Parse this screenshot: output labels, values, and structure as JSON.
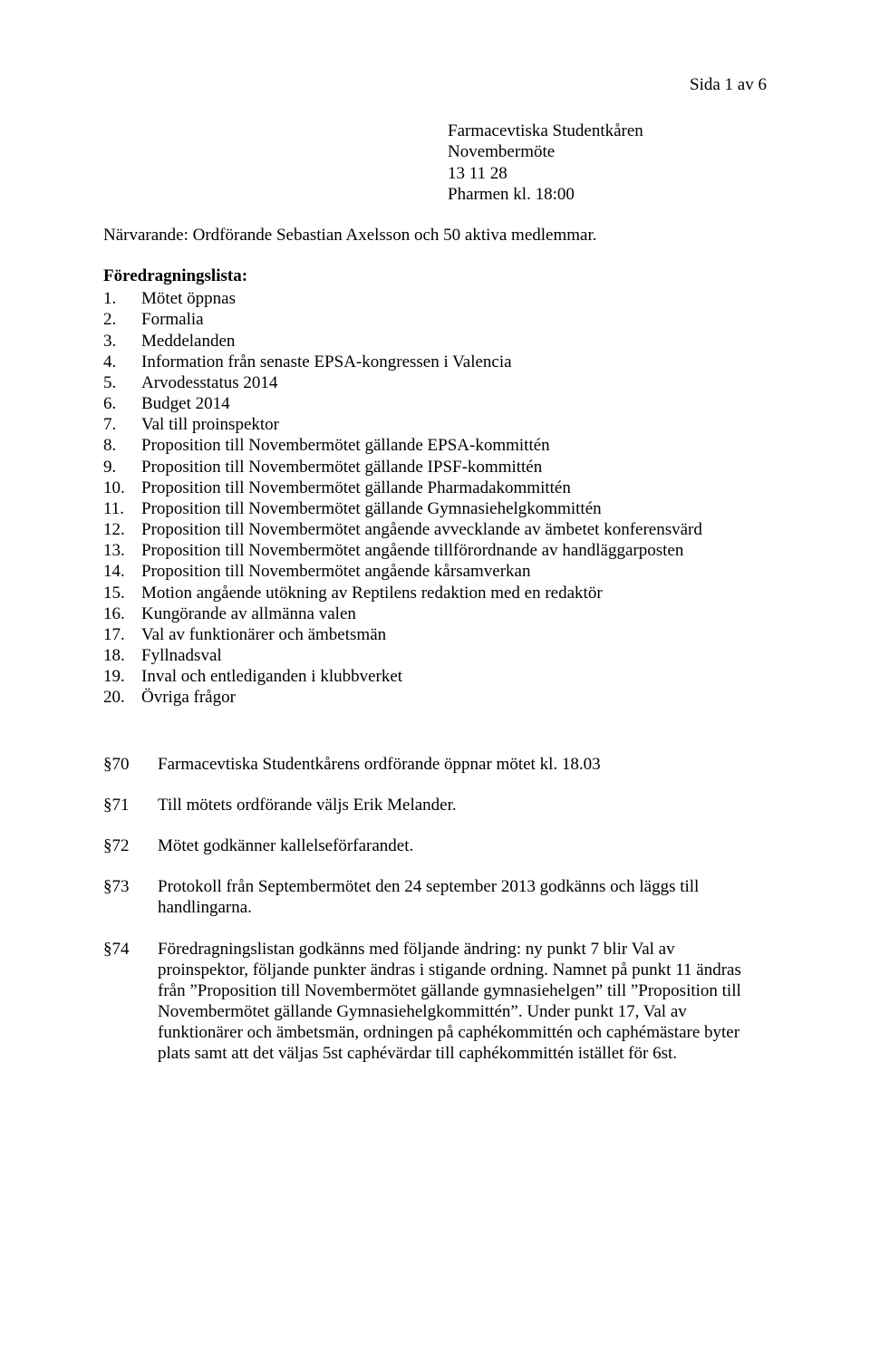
{
  "page_number": "Sida 1 av 6",
  "header": {
    "org": "Farmacevtiska Studentkåren",
    "meeting": "Novembermöte",
    "date": "13 11 28",
    "location": "Pharmen kl. 18:00"
  },
  "attendance": "Närvarande: Ordförande Sebastian Axelsson och 50 aktiva medlemmar.",
  "agenda_title": "Föredragningslista:",
  "agenda": [
    {
      "n": "1.",
      "t": "Mötet öppnas"
    },
    {
      "n": "2.",
      "t": "Formalia"
    },
    {
      "n": "3.",
      "t": "Meddelanden"
    },
    {
      "n": "4.",
      "t": "Information från senaste EPSA-kongressen i Valencia"
    },
    {
      "n": "5.",
      "t": "Arvodesstatus 2014"
    },
    {
      "n": "6.",
      "t": "Budget 2014"
    },
    {
      "n": "7.",
      "t": "Val till proinspektor"
    },
    {
      "n": "8.",
      "t": "Proposition till Novembermötet gällande EPSA-kommittén"
    },
    {
      "n": "9.",
      "t": "Proposition till Novembermötet gällande IPSF-kommittén"
    },
    {
      "n": "10.",
      "t": "Proposition till Novembermötet gällande Pharmadakommittén"
    },
    {
      "n": "11.",
      "t": "Proposition till Novembermötet gällande Gymnasiehelgkommittén"
    },
    {
      "n": "12.",
      "t": "Proposition till Novembermötet angående avvecklande av ämbetet konferensvärd"
    },
    {
      "n": "13.",
      "t": "Proposition till Novembermötet angående tillförordnande av handläggarposten"
    },
    {
      "n": "14.",
      "t": "Proposition till Novembermötet angående kårsamverkan"
    },
    {
      "n": "15.",
      "t": "Motion angående utökning av Reptilens redaktion med en redaktör"
    },
    {
      "n": "16.",
      "t": "Kungörande av allmänna valen"
    },
    {
      "n": "17.",
      "t": "Val av funktionärer och ämbetsmän"
    },
    {
      "n": "18.",
      "t": "Fyllnadsval"
    },
    {
      "n": "19.",
      "t": "Inval och entlediganden i klubbverket"
    },
    {
      "n": "20.",
      "t": "Övriga frågor"
    }
  ],
  "paragraphs": [
    {
      "n": "§70",
      "t": "Farmacevtiska Studentkårens ordförande öppnar mötet kl. 18.03"
    },
    {
      "n": "§71",
      "t": "Till mötets ordförande väljs Erik Melander."
    },
    {
      "n": "§72",
      "t": "Mötet godkänner kallelseförfarandet."
    },
    {
      "n": "§73",
      "t": "Protokoll från Septembermötet den 24 september 2013 godkänns och läggs till handlingarna."
    },
    {
      "n": "§74",
      "t": "Föredragningslistan godkänns med följande ändring: ny punkt 7 blir Val av proinspektor, följande punkter ändras i stigande ordning. Namnet på punkt 11 ändras från ”Proposition till Novembermötet gällande gymnasiehelgen” till ”Proposition till Novembermötet gällande Gymnasiehelgkommittén”. Under punkt 17, Val av funktionärer och ämbetsmän, ordningen på caphékommittén och caphémästare byter plats samt att det väljas 5st caphévärdar till caphékommittén istället för 6st."
    }
  ]
}
